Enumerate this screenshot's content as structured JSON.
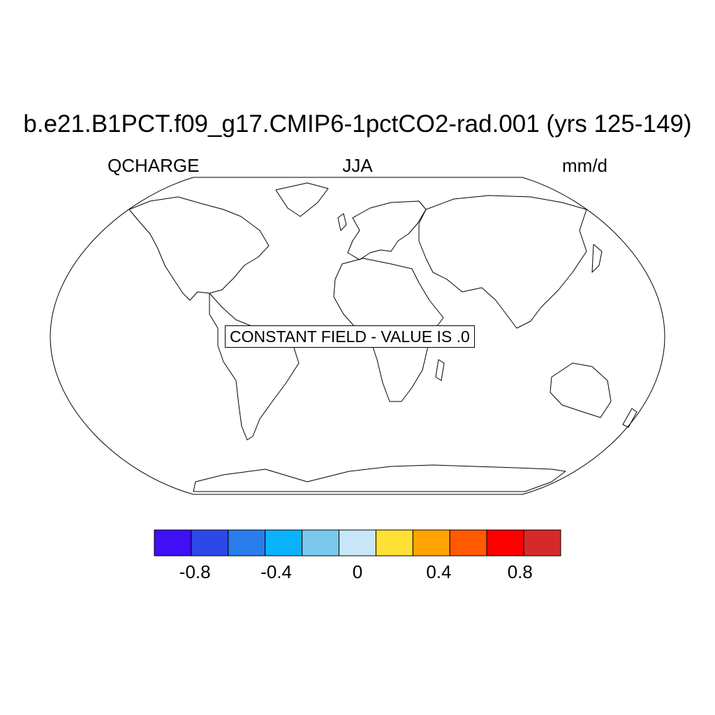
{
  "title": "b.e21.B1PCT.f09_g17.CMIP6-1pctCO2-rad.001 (yrs 125-149)",
  "left_string": "QCHARGE",
  "center_string": "JJA",
  "right_string": "mm/d",
  "constant_field_message": "CONSTANT FIELD - VALUE IS .0",
  "projection": "Robinson",
  "colorbar": {
    "colors": [
      "#3f0ff5",
      "#2d47e8",
      "#2a7ded",
      "#0bb2fd",
      "#7ac8ee",
      "#c8e6f7",
      "#ffe034",
      "#ffa400",
      "#ff5a00",
      "#ff0000",
      "#d62a2a"
    ],
    "tick_labels": [
      "-0.8",
      "-0.4",
      "0",
      "0.4",
      "0.8"
    ],
    "tick_values": [
      -0.8,
      -0.4,
      0,
      0.4,
      0.8
    ],
    "min": -1.0,
    "max": 1.0
  }
}
